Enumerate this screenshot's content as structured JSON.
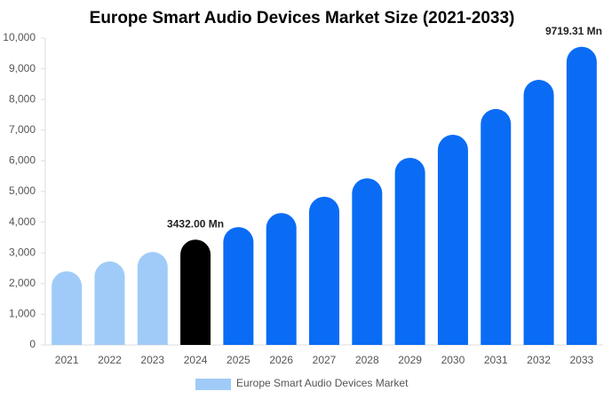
{
  "chart_data": {
    "type": "bar",
    "title": "Europe Smart Audio Devices Market Size (2021-2033)",
    "categories": [
      "2021",
      "2022",
      "2023",
      "2024",
      "2025",
      "2026",
      "2027",
      "2028",
      "2029",
      "2030",
      "2031",
      "2032",
      "2033"
    ],
    "series": [
      {
        "name": "Europe Smart Audio Devices Market",
        "color": "#a0cbf8",
        "colors": [
          "#a0cbf8",
          "#a0cbf8",
          "#a0cbf8",
          "#000000",
          "#0a6cf5",
          "#0a6cf5",
          "#0a6cf5",
          "#0a6cf5",
          "#0a6cf5",
          "#0a6cf5",
          "#0a6cf5",
          "#0a6cf5",
          "#0a6cf5"
        ],
        "values": [
          2400,
          2720,
          3030,
          3432.0,
          3840,
          4300,
          4830,
          5430,
          6100,
          6850,
          7690,
          8640,
          9719.31
        ],
        "value_labels": [
          null,
          null,
          null,
          "3432.00 Mn",
          null,
          null,
          null,
          null,
          null,
          null,
          null,
          null,
          "9719.31 Mn"
        ]
      }
    ],
    "ylim": [
      0,
      10000
    ],
    "yticks": [
      0,
      {
        "value": 1000,
        "label": "1,000"
      },
      {
        "value": 2000,
        "label": "2,000"
      },
      {
        "value": 3000,
        "label": "3,000"
      },
      {
        "value": 4000,
        "label": "4,000"
      },
      {
        "value": 5000,
        "label": "5,000"
      },
      {
        "value": 6000,
        "label": "6,000"
      },
      {
        "value": 7000,
        "label": "7,000"
      },
      {
        "value": 8000,
        "label": "8,000"
      },
      {
        "value": 9000,
        "label": "9,000"
      },
      {
        "value": 10000,
        "label": "10,000"
      }
    ],
    "grid": false,
    "legend": "bottom"
  }
}
